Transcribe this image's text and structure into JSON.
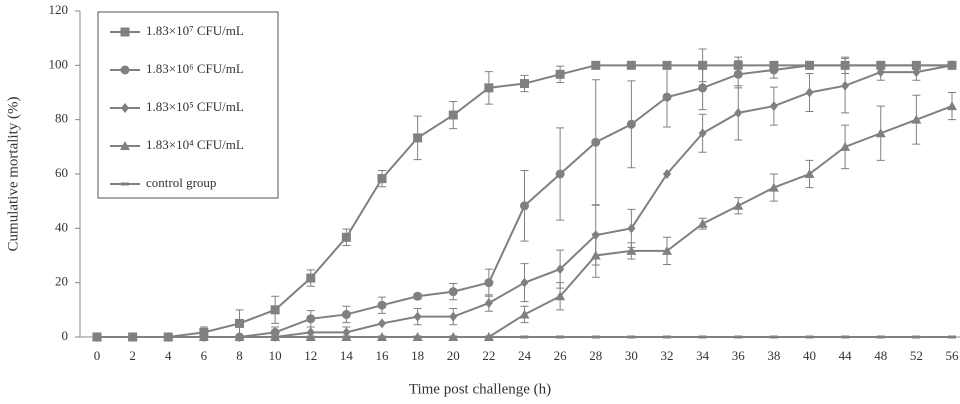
{
  "chart_data": {
    "type": "line",
    "x_label": "Time post challenge (h)",
    "y_label": "Cumulative mortality (%)",
    "categories": [
      "0",
      "2",
      "4",
      "6",
      "8",
      "10",
      "12",
      "14",
      "16",
      "18",
      "20",
      "22",
      "24",
      "26",
      "28",
      "30",
      "32",
      "34",
      "36",
      "38",
      "40",
      "44",
      "48",
      "52",
      "56"
    ],
    "ylim": [
      0,
      120
    ],
    "yticks": [
      0,
      20,
      40,
      60,
      80,
      100,
      120
    ],
    "legend": "top-left",
    "series": [
      {
        "name": "1.83×10⁷ CFU/mL",
        "color": "#808080",
        "marker": "square",
        "values": [
          0,
          0,
          0,
          1.7,
          5,
          10,
          21.7,
          36.7,
          58.3,
          73.3,
          81.7,
          91.7,
          93.3,
          96.7,
          100,
          100,
          100,
          100,
          100,
          100,
          100,
          100,
          100,
          100,
          100
        ],
        "errors": [
          0,
          0,
          0,
          2,
          5,
          5,
          3,
          3,
          3,
          8,
          5,
          6,
          3,
          3,
          0,
          0,
          0,
          6,
          3,
          0,
          0,
          3,
          0,
          0,
          0
        ]
      },
      {
        "name": "1.83×10⁶ CFU/mL",
        "color": "#808080",
        "marker": "circle",
        "values": [
          0,
          0,
          0,
          0,
          0,
          1.7,
          6.7,
          8.3,
          11.7,
          15,
          16.7,
          20,
          48.3,
          60,
          71.7,
          78.3,
          88.3,
          91.7,
          96.7,
          98.3,
          100,
          100,
          100,
          100,
          100
        ],
        "errors": [
          0,
          0,
          0,
          0,
          0,
          2,
          3,
          3,
          3,
          1,
          3,
          5,
          13,
          17,
          23,
          16,
          11,
          8,
          5,
          3,
          0,
          0,
          0,
          0,
          0
        ]
      },
      {
        "name": "1.83×10⁵ CFU/mL",
        "color": "#808080",
        "marker": "diamond",
        "values": [
          0,
          0,
          0,
          0,
          0,
          0,
          1.7,
          1.7,
          5,
          7.5,
          7.5,
          12.5,
          20,
          25,
          37.5,
          40,
          60,
          75,
          82.5,
          85,
          90,
          92.5,
          97.5,
          97.5,
          100
        ],
        "errors": [
          0,
          0,
          0,
          0,
          0,
          0,
          2,
          2,
          0,
          3,
          3,
          3,
          7,
          7,
          11,
          7,
          0,
          7,
          10,
          7,
          7,
          10,
          3,
          3,
          0
        ]
      },
      {
        "name": "1.83×10⁴ CFU/mL",
        "color": "#808080",
        "marker": "triangle",
        "values": [
          0,
          0,
          0,
          0,
          0,
          0,
          0,
          0,
          0,
          0,
          0,
          0,
          8.3,
          15,
          30,
          31.7,
          31.7,
          41.7,
          48.3,
          55,
          60,
          70,
          75,
          80,
          85
        ],
        "errors": [
          0,
          0,
          0,
          0,
          0,
          0,
          0,
          0,
          0,
          0,
          0,
          0,
          3,
          5,
          8,
          3,
          5,
          2,
          3,
          5,
          5,
          8,
          10,
          9,
          5
        ]
      },
      {
        "name": "control group",
        "color": "#808080",
        "marker": "dash",
        "values": [
          0,
          0,
          0,
          0,
          0,
          0,
          0,
          0,
          0,
          0,
          0,
          0,
          0,
          0,
          0,
          0,
          0,
          0,
          0,
          0,
          0,
          0,
          0,
          0,
          0
        ],
        "errors": [
          0,
          0,
          0,
          0,
          0,
          0,
          0,
          0,
          0,
          0,
          0,
          0,
          0,
          0,
          0,
          0,
          0,
          0,
          0,
          0,
          0,
          0,
          0,
          0,
          0
        ]
      }
    ]
  }
}
